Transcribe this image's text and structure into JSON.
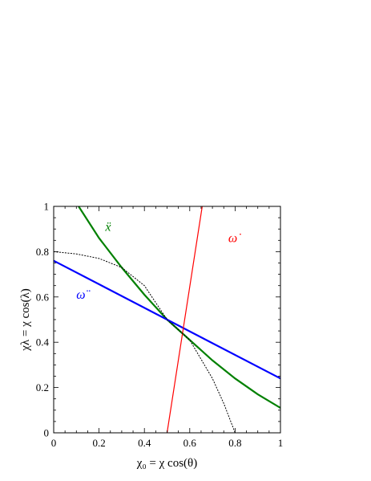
{
  "chart_data": {
    "type": "line",
    "xlabel": "χ₀ = χ cos(θ)",
    "ylabel": "χλ = χ cos(λ)",
    "xlim": [
      0,
      1
    ],
    "ylim": [
      0,
      1
    ],
    "x_ticks": [
      "0",
      "0.2",
      "0.4",
      "0.6",
      "0.8",
      "1"
    ],
    "y_ticks": [
      "0",
      "0.2",
      "0.4",
      "0.6",
      "0.8",
      "1"
    ],
    "grid": false,
    "series": [
      {
        "name": "ẍ",
        "color": "#008000",
        "x": [
          0.11,
          0.2,
          0.3,
          0.4,
          0.5,
          0.6,
          0.7,
          0.8,
          0.9,
          1.0
        ],
        "y": [
          1.0,
          0.86,
          0.73,
          0.61,
          0.5,
          0.41,
          0.32,
          0.24,
          0.17,
          0.11
        ]
      },
      {
        "name": "ω̈",
        "color": "#0000ff",
        "x": [
          0,
          1
        ],
        "y": [
          0.76,
          0.24
        ]
      },
      {
        "name": "ω̇",
        "color": "#ff0000",
        "x": [
          0.5,
          0.655
        ],
        "y": [
          0,
          1.0
        ]
      },
      {
        "name": "",
        "color": "#000000",
        "dashed": true,
        "x": [
          0,
          0.1,
          0.2,
          0.3,
          0.4,
          0.5,
          0.6,
          0.7,
          0.75,
          0.8
        ],
        "y": [
          0.8,
          0.79,
          0.77,
          0.73,
          0.65,
          0.5,
          0.41,
          0.24,
          0.13,
          0.0
        ]
      }
    ],
    "labels": [
      {
        "text": "ẍ",
        "x": 0.24,
        "y": 0.91,
        "color": "#008000"
      },
      {
        "text": "ω̈",
        "x": 0.12,
        "y": 0.61,
        "color": "#0000ff"
      },
      {
        "text": "ω̇",
        "x": 0.79,
        "y": 0.86,
        "color": "#ff0000"
      }
    ]
  }
}
